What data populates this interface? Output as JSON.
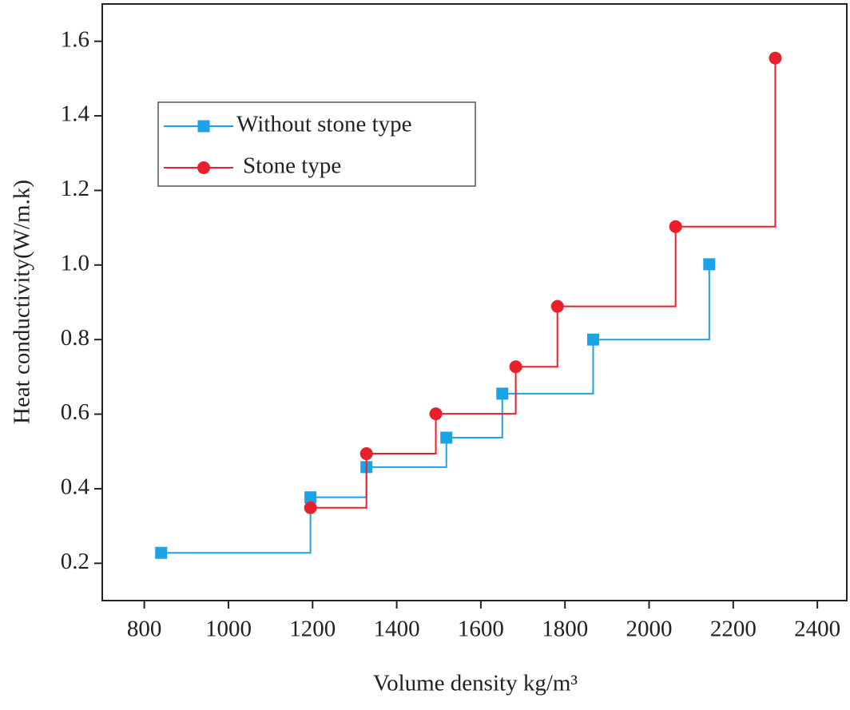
{
  "chart_data": {
    "type": "step",
    "x_label": "Volume density kg/m³",
    "y_label": "Heat conductivity(W/m.k)",
    "xlim": [
      700,
      2470
    ],
    "ylim": [
      0.1,
      1.7
    ],
    "xticks": [
      800,
      1000,
      1200,
      1400,
      1600,
      1800,
      2000,
      2200,
      2400
    ],
    "yticks": [
      0.2,
      0.4,
      0.6,
      0.8,
      {
        "value": 1,
        "label": "1.0"
      },
      1.2,
      1.4,
      1.6
    ],
    "legend": "upper left",
    "series": [
      {
        "name": "Without stone type",
        "color": "#1aa3e8",
        "marker": "square",
        "x": [
          840,
          1195,
          1328,
          1518,
          1651,
          1867,
          2143
        ],
        "values": [
          0.228,
          0.377,
          0.458,
          0.537,
          0.655,
          0.8,
          1.002
        ]
      },
      {
        "name": "Stone type",
        "color": "#e8202c",
        "marker": "circle",
        "x": [
          1195,
          1328,
          1493,
          1683,
          1782,
          2063,
          2300
        ],
        "values": [
          0.349,
          0.494,
          0.601,
          0.727,
          0.889,
          1.103,
          1.555
        ]
      }
    ]
  }
}
